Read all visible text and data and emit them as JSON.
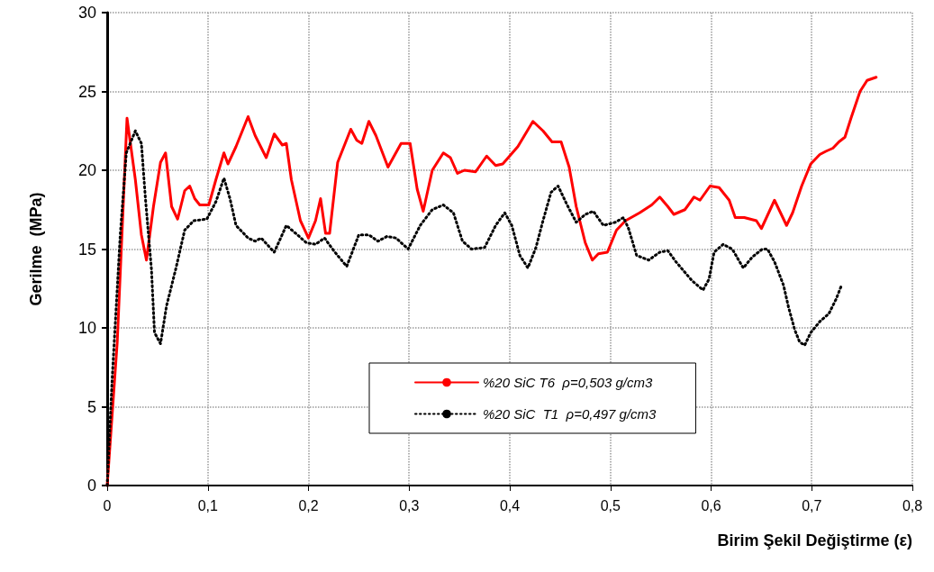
{
  "chart_data": {
    "type": "line",
    "xlabel": "Birim Şekil Değiştirme (ε)",
    "ylabel": "Gerilme  (MPa)",
    "xlim": [
      0,
      0.8
    ],
    "xticks": [
      0,
      {
        "value": 0.1,
        "label": "0,1"
      },
      {
        "value": 0.2,
        "label": "0,2"
      },
      {
        "value": 0.3,
        "label": "0,3"
      },
      {
        "value": 0.4,
        "label": "0,4"
      },
      {
        "value": 0.5,
        "label": "0,5"
      },
      {
        "value": 0.6,
        "label": "0,6"
      },
      {
        "value": 0.7,
        "label": "0,7"
      },
      {
        "value": 0.8,
        "label": "0,8"
      }
    ],
    "ylim": [
      0,
      30
    ],
    "yticks": [
      0,
      5,
      10,
      15,
      20,
      25,
      30
    ],
    "grid": true,
    "legend": "bottom",
    "marker": "none",
    "series": [
      {
        "name": "%20 SiC T6  ρ=0,503 g/cm3",
        "color": "#ff0000",
        "line_style": "solid",
        "x": [
          0,
          0.01,
          0.0197,
          0.028,
          0.034,
          0.039,
          0.046,
          0.053,
          0.058,
          0.064,
          0.07,
          0.077,
          0.082,
          0.087,
          0.092,
          0.101,
          0.108,
          0.116,
          0.12,
          0.128,
          0.14,
          0.147,
          0.158,
          0.166,
          0.174,
          0.178,
          0.183,
          0.192,
          0.2,
          0.207,
          0.212,
          0.217,
          0.221,
          0.229,
          0.242,
          0.248,
          0.253,
          0.26,
          0.267,
          0.279,
          0.292,
          0.301,
          0.308,
          0.314,
          0.323,
          0.334,
          0.341,
          0.348,
          0.355,
          0.366,
          0.377,
          0.386,
          0.393,
          0.408,
          0.423,
          0.433,
          0.442,
          0.451,
          0.459,
          0.466,
          0.475,
          0.482,
          0.488,
          0.497,
          0.506,
          0.515,
          0.529,
          0.541,
          0.549,
          0.557,
          0.563,
          0.574,
          0.583,
          0.589,
          0.599,
          0.608,
          0.618,
          0.624,
          0.633,
          0.645,
          0.65,
          0.663,
          0.675,
          0.681,
          0.69,
          0.699,
          0.708,
          0.714,
          0.721,
          0.727,
          0.733,
          0.739,
          0.748,
          0.755,
          0.764
        ],
        "values": [
          0,
          9.1,
          23.3,
          19.4,
          15.9,
          14.3,
          17.7,
          20.5,
          21.1,
          17.7,
          16.9,
          18.7,
          19.0,
          18.2,
          17.8,
          17.8,
          19.4,
          21.1,
          20.4,
          21.5,
          23.4,
          22.2,
          20.8,
          22.3,
          21.6,
          21.7,
          19.4,
          16.8,
          15.7,
          16.8,
          18.2,
          16.0,
          16.0,
          20.5,
          22.6,
          21.9,
          21.7,
          23.1,
          22.2,
          20.2,
          21.7,
          21.7,
          18.8,
          17.4,
          20.0,
          21.1,
          20.8,
          19.8,
          20.0,
          19.9,
          20.9,
          20.3,
          20.4,
          21.5,
          23.1,
          22.5,
          21.8,
          21.8,
          20.2,
          17.7,
          15.4,
          14.3,
          14.7,
          14.8,
          16.2,
          16.8,
          17.3,
          17.8,
          18.3,
          17.7,
          17.2,
          17.5,
          18.3,
          18.1,
          19.0,
          18.9,
          18.1,
          17.0,
          17.0,
          16.8,
          16.3,
          18.1,
          16.5,
          17.3,
          19.0,
          20.4,
          21.0,
          21.2,
          21.4,
          21.8,
          22.1,
          23.3,
          25.0,
          25.7,
          25.9
        ]
      },
      {
        "name": "%20 SiC  T1  ρ=0,497 g/cm3",
        "color": "#000000",
        "line_style": "dotted",
        "x": [
          0,
          0.005,
          0.013,
          0.019,
          0.028,
          0.034,
          0.038,
          0.044,
          0.047,
          0.053,
          0.059,
          0.068,
          0.077,
          0.086,
          0.099,
          0.108,
          0.116,
          0.122,
          0.128,
          0.14,
          0.147,
          0.153,
          0.166,
          0.178,
          0.189,
          0.198,
          0.207,
          0.216,
          0.225,
          0.238,
          0.25,
          0.26,
          0.269,
          0.278,
          0.287,
          0.299,
          0.311,
          0.323,
          0.334,
          0.344,
          0.353,
          0.362,
          0.375,
          0.386,
          0.395,
          0.402,
          0.41,
          0.418,
          0.426,
          0.433,
          0.441,
          0.448,
          0.457,
          0.466,
          0.475,
          0.483,
          0.493,
          0.505,
          0.513,
          0.518,
          0.526,
          0.538,
          0.549,
          0.557,
          0.565,
          0.581,
          0.592,
          0.598,
          0.603,
          0.612,
          0.621,
          0.632,
          0.641,
          0.651,
          0.656,
          0.663,
          0.672,
          0.677,
          0.683,
          0.688,
          0.693,
          0.699,
          0.708,
          0.717,
          0.724,
          0.729
        ],
        "values": [
          0,
          6.8,
          15.9,
          21.1,
          22.5,
          21.7,
          18.2,
          13.7,
          9.7,
          9.0,
          11.4,
          13.7,
          16.2,
          16.8,
          16.9,
          18.0,
          19.5,
          18.2,
          16.5,
          15.7,
          15.5,
          15.7,
          14.8,
          16.5,
          15.9,
          15.4,
          15.3,
          15.7,
          14.9,
          13.9,
          15.9,
          15.9,
          15.5,
          15.8,
          15.7,
          15.0,
          16.5,
          17.5,
          17.8,
          17.3,
          15.5,
          15.0,
          15.1,
          16.5,
          17.3,
          16.5,
          14.6,
          13.8,
          15.1,
          16.8,
          18.6,
          19.0,
          17.8,
          16.7,
          17.2,
          17.4,
          16.5,
          16.7,
          17.0,
          16.3,
          14.6,
          14.3,
          14.8,
          14.9,
          14.2,
          13.0,
          12.4,
          13.1,
          14.8,
          15.3,
          15.0,
          13.8,
          14.5,
          15.0,
          15.0,
          14.2,
          12.7,
          11.3,
          9.9,
          9.1,
          8.9,
          9.7,
          10.4,
          10.9,
          11.8,
          12.6
        ]
      }
    ]
  }
}
